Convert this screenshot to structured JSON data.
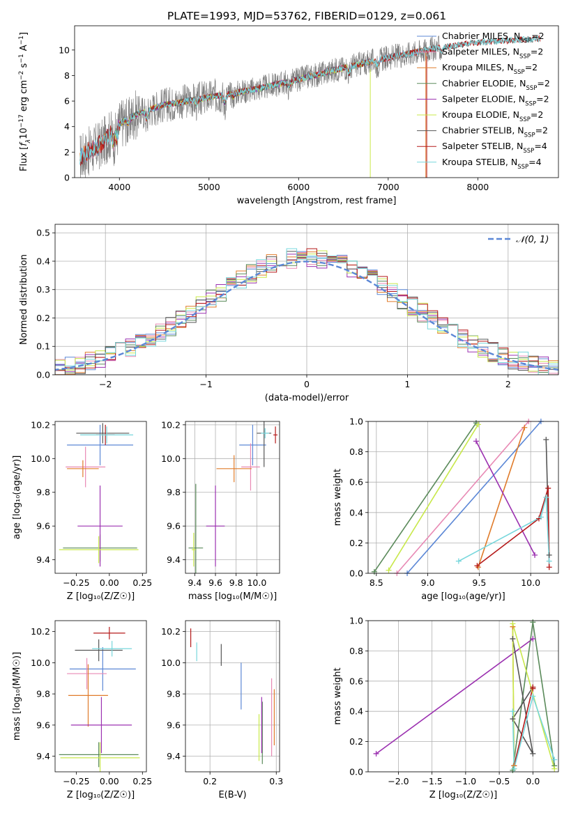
{
  "title": "PLATE=1993, MJD=53762, FIBERID=0129, z=0.061",
  "colors": {
    "chabrier_miles": "#5b87d6",
    "salpeter_miles": "#e889b4",
    "kroupa_miles": "#e07b2a",
    "chabrier_elodie": "#5a8a5a",
    "salpeter_elodie": "#9b30b0",
    "kroupa_elodie": "#c8e84a",
    "chabrier_stelib": "#555555",
    "salpeter_stelib": "#b51a1a",
    "kroupa_stelib": "#77d7dc",
    "data": "#808080",
    "gaussian": "#5b87d6"
  },
  "chart_data": [
    {
      "id": "spectrum",
      "type": "line",
      "title": "PLATE=1993, MJD=53762, FIBERID=0129, z=0.061",
      "xlabel": "wavelength [Angstrom, rest frame]",
      "ylabel_parts": [
        "Flux [",
        "f",
        "λ",
        "10",
        "−17",
        " erg cm",
        "−2",
        " s",
        "−1",
        " A",
        "−1",
        "]"
      ],
      "xlim": [
        3500,
        8900
      ],
      "ylim": [
        0,
        11.9
      ],
      "xticks": [
        "4000",
        "5000",
        "6000",
        "7000",
        "8000"
      ],
      "xtick_values": [
        4000,
        5000,
        6000,
        7000,
        8000
      ],
      "yticks": [
        "0",
        "2",
        "4",
        "6",
        "8",
        "10"
      ],
      "ytick_values": [
        0,
        2,
        4,
        6,
        8,
        10
      ],
      "legend_position": "upper right",
      "legend": [
        {
          "text": "Chabrier MILES, N",
          "sub": "SSP",
          "tail": "=2",
          "key": "chabrier_miles"
        },
        {
          "text": "Salpeter MILES, N",
          "sub": "SSP",
          "tail": "=2",
          "key": "salpeter_miles"
        },
        {
          "text": "Kroupa MILES, N",
          "sub": "SSP",
          "tail": "=2",
          "key": "kroupa_miles"
        },
        {
          "text": "Chabrier ELODIE, N",
          "sub": "SSP",
          "tail": "=2",
          "key": "chabrier_elodie"
        },
        {
          "text": "Salpeter ELODIE, N",
          "sub": "SSP",
          "tail": "=2",
          "key": "salpeter_elodie"
        },
        {
          "text": "Kroupa ELODIE, N",
          "sub": "SSP",
          "tail": "=2",
          "key": "kroupa_elodie"
        },
        {
          "text": "Chabrier STELIB, N",
          "sub": "SSP",
          "tail": "=2",
          "key": "chabrier_stelib"
        },
        {
          "text": "Salpeter STELIB, N",
          "sub": "SSP",
          "tail": "=4",
          "key": "salpeter_stelib"
        },
        {
          "text": "Kroupa STELIB, N",
          "sub": "SSP",
          "tail": "=4",
          "key": "kroupa_stelib"
        }
      ],
      "data_range": [
        3560,
        7600
      ],
      "model_ranges": {
        "miles": [
          3560,
          7420
        ],
        "elodie": [
          3900,
          6800
        ],
        "stelib": [
          3560,
          8700
        ]
      },
      "continuum_knots": [
        [
          3560,
          1.6
        ],
        [
          3800,
          2.6
        ],
        [
          4000,
          4.2
        ],
        [
          4200,
          5.0
        ],
        [
          4500,
          5.7
        ],
        [
          5000,
          6.3
        ],
        [
          5500,
          6.9
        ],
        [
          6000,
          7.7
        ],
        [
          6500,
          8.6
        ],
        [
          7000,
          9.4
        ],
        [
          7500,
          10.1
        ],
        [
          8000,
          10.6
        ],
        [
          8700,
          10.9
        ]
      ]
    },
    {
      "id": "residuals",
      "type": "histogram",
      "xlabel": "(data-model)/error",
      "ylabel": "Normed distribution",
      "xlim": [
        -2.5,
        2.5
      ],
      "ylim": [
        0,
        0.53
      ],
      "xticks": [
        "−2",
        "−1",
        "0",
        "1",
        "2"
      ],
      "xtick_values": [
        -2,
        -1,
        0,
        1,
        2
      ],
      "yticks": [
        "0.0",
        "0.1",
        "0.2",
        "0.3",
        "0.4",
        "0.5"
      ],
      "ytick_values": [
        0,
        0.1,
        0.2,
        0.3,
        0.4,
        0.5
      ],
      "legend_label": "𝒩(0, 1)",
      "legend_position": "upper right",
      "bin_width": 0.1,
      "gaussian": {
        "mu": 0,
        "sigma": 1
      }
    },
    {
      "id": "age_vs_z",
      "type": "errorbar",
      "xlabel": "Z [log₁₀(Z/Z☉)]",
      "ylabel": "age  [log₁₀(age/yr)]",
      "xlim": [
        -0.41,
        0.28
      ],
      "ylim": [
        9.32,
        10.22
      ],
      "xticks": [
        "−0.25",
        "0.00",
        "0.25"
      ],
      "xtick_values": [
        -0.25,
        0,
        0.25
      ],
      "yticks": [
        "9.4",
        "9.6",
        "9.8",
        "10.0",
        "10.2"
      ],
      "ytick_values": [
        9.4,
        9.6,
        9.8,
        10.0,
        10.2
      ],
      "points": [
        {
          "key": "chabrier_miles",
          "x": -0.07,
          "y": 10.08,
          "xerr": 0.25,
          "yerr": 0.12
        },
        {
          "key": "salpeter_miles",
          "x": -0.18,
          "y": 9.95,
          "xerr": 0.15,
          "yerr": 0.12
        },
        {
          "key": "kroupa_miles",
          "x": -0.2,
          "y": 9.94,
          "xerr": 0.12,
          "yerr": 0.05
        },
        {
          "key": "chabrier_elodie",
          "x": -0.07,
          "y": 9.47,
          "xerr": 0.28,
          "yerr": 0.08
        },
        {
          "key": "salpeter_elodie",
          "x": -0.07,
          "y": 9.6,
          "xerr": 0.17,
          "yerr": 0.24
        },
        {
          "key": "kroupa_elodie",
          "x": -0.08,
          "y": 9.46,
          "xerr": 0.3,
          "yerr": 0.08
        },
        {
          "key": "chabrier_stelib",
          "x": -0.05,
          "y": 10.15,
          "xerr": 0.2,
          "yerr": 0.06
        },
        {
          "key": "salpeter_stelib",
          "x": -0.03,
          "y": 10.14,
          "xerr": 0.07,
          "yerr": 0.06
        },
        {
          "key": "kroupa_stelib",
          "x": -0.02,
          "y": 10.14,
          "xerr": 0.2,
          "yerr": 0.05
        }
      ]
    },
    {
      "id": "age_vs_mass",
      "type": "errorbar",
      "xlabel": "mass [log₁₀(M/M☉)]",
      "ylabel": "",
      "xlim": [
        9.31,
        10.22
      ],
      "ylim": [
        9.32,
        10.22
      ],
      "xticks": [
        "9.4",
        "9.6",
        "9.8",
        "10.0"
      ],
      "xtick_values": [
        9.4,
        9.6,
        9.8,
        10.0
      ],
      "yticks": [
        "9.4",
        "9.6",
        "9.8",
        "10.0",
        "10.2"
      ],
      "ytick_values": [
        9.4,
        9.6,
        9.8,
        10.0,
        10.2
      ],
      "points": [
        {
          "key": "chabrier_miles",
          "x": 9.96,
          "y": 10.08,
          "xerr": 0.13,
          "yerr": 0.12
        },
        {
          "key": "salpeter_miles",
          "x": 9.94,
          "y": 9.95,
          "xerr": 0.09,
          "yerr": 0.14
        },
        {
          "key": "kroupa_miles",
          "x": 9.78,
          "y": 9.94,
          "xerr": 0.17,
          "yerr": 0.08
        },
        {
          "key": "chabrier_elodie",
          "x": 9.41,
          "y": 9.47,
          "xerr": 0.07,
          "yerr": 0.38
        },
        {
          "key": "salpeter_elodie",
          "x": 9.6,
          "y": 9.6,
          "xerr": 0.09,
          "yerr": 0.24
        },
        {
          "key": "kroupa_elodie",
          "x": 9.39,
          "y": 9.46,
          "xerr": 0.02,
          "yerr": 0.1
        },
        {
          "key": "chabrier_stelib",
          "x": 10.07,
          "y": 10.15,
          "xerr": 0.07,
          "yerr": 0.2
        },
        {
          "key": "salpeter_stelib",
          "x": 10.18,
          "y": 10.14,
          "xerr": 0.02,
          "yerr": 0.05
        },
        {
          "key": "kroupa_stelib",
          "x": 10.08,
          "y": 10.15,
          "xerr": 0.04,
          "yerr": 0.03
        }
      ]
    },
    {
      "id": "weight_vs_age",
      "type": "line",
      "xlabel": "age  [log₁₀(age/yr)]",
      "ylabel": "mass weight",
      "xlim": [
        8.42,
        10.27
      ],
      "ylim": [
        0,
        1
      ],
      "xticks": [
        "8.5",
        "9.0",
        "9.5",
        "10.0"
      ],
      "xtick_values": [
        8.5,
        9.0,
        9.5,
        10.0
      ],
      "yticks": [
        "0.0",
        "0.2",
        "0.4",
        "0.6",
        "0.8",
        "1.0"
      ],
      "ytick_values": [
        0,
        0.2,
        0.4,
        0.6,
        0.8,
        1.0
      ],
      "series": [
        {
          "key": "chabrier_elodie",
          "x": [
            8.48,
            9.47
          ],
          "y": [
            0.01,
            0.99
          ]
        },
        {
          "key": "salpeter_miles",
          "x": [
            8.7,
            9.98
          ],
          "y": [
            0.0,
            1.0
          ]
        },
        {
          "key": "kroupa_elodie",
          "x": [
            8.62,
            9.49
          ],
          "y": [
            0.02,
            0.98
          ]
        },
        {
          "key": "chabrier_miles",
          "x": [
            8.8,
            10.1
          ],
          "y": [
            0.0,
            1.0
          ]
        },
        {
          "key": "kroupa_miles",
          "x": [
            9.49,
            9.94
          ],
          "y": [
            0.04,
            0.96
          ]
        },
        {
          "key": "salpeter_elodie",
          "x": [
            9.47,
            10.04
          ],
          "y": [
            0.87,
            0.12
          ]
        },
        {
          "key": "chabrier_stelib",
          "x": [
            10.15,
            10.18
          ],
          "y": [
            0.88,
            0.12
          ]
        },
        {
          "key": "salpeter_stelib",
          "x": [
            9.48,
            10.08,
            10.17,
            10.18
          ],
          "y": [
            0.05,
            0.36,
            0.56,
            0.04
          ]
        },
        {
          "key": "kroupa_stelib",
          "x": [
            9.3,
            10.1,
            10.15,
            10.18
          ],
          "y": [
            0.08,
            0.37,
            0.5,
            0.08
          ]
        }
      ]
    },
    {
      "id": "mass_vs_z",
      "type": "errorbar",
      "xlabel": "Z [log₁₀(Z/Z☉)]",
      "ylabel": "mass [log₁₀(M/M☉)]",
      "xlim": [
        -0.41,
        0.28
      ],
      "ylim": [
        9.3,
        10.27
      ],
      "xticks": [
        "−0.25",
        "0.00",
        "0.25"
      ],
      "xtick_values": [
        -0.25,
        0,
        0.25
      ],
      "yticks": [
        "9.4",
        "9.6",
        "9.8",
        "10.0",
        "10.2"
      ],
      "ytick_values": [
        9.4,
        9.6,
        9.8,
        10.0,
        10.2
      ],
      "points": [
        {
          "key": "chabrier_miles",
          "x": -0.05,
          "y": 9.96,
          "xerr": 0.25,
          "yerr": 0.14
        },
        {
          "key": "salpeter_miles",
          "x": -0.17,
          "y": 9.93,
          "xerr": 0.15,
          "yerr": 0.1
        },
        {
          "key": "kroupa_miles",
          "x": -0.16,
          "y": 9.79,
          "xerr": 0.15,
          "yerr": 0.2
        },
        {
          "key": "chabrier_elodie",
          "x": -0.08,
          "y": 9.41,
          "xerr": 0.3,
          "yerr": 0.08
        },
        {
          "key": "salpeter_elodie",
          "x": -0.06,
          "y": 9.6,
          "xerr": 0.23,
          "yerr": 0.18
        },
        {
          "key": "kroupa_elodie",
          "x": -0.07,
          "y": 9.39,
          "xerr": 0.3,
          "yerr": 0.1
        },
        {
          "key": "chabrier_stelib",
          "x": -0.08,
          "y": 10.08,
          "xerr": 0.18,
          "yerr": 0.07
        },
        {
          "key": "salpeter_stelib",
          "x": 0.0,
          "y": 10.19,
          "xerr": 0.12,
          "yerr": 0.04
        },
        {
          "key": "kroupa_stelib",
          "x": 0.02,
          "y": 10.09,
          "xerr": 0.15,
          "yerr": 0.05
        }
      ]
    },
    {
      "id": "mass_vs_ebv",
      "type": "errorbar",
      "xlabel": "E(B-V)",
      "ylabel": "",
      "xlim": [
        0.163,
        0.305
      ],
      "ylim": [
        9.3,
        10.27
      ],
      "xticks": [
        "0.2",
        "0.3"
      ],
      "xtick_values": [
        0.2,
        0.3
      ],
      "yticks": [
        "9.4",
        "9.6",
        "9.8",
        "10.0",
        "10.2"
      ],
      "ytick_values": [
        9.4,
        9.6,
        9.8,
        10.0,
        10.2
      ],
      "points": [
        {
          "key": "chabrier_miles",
          "x": 0.247,
          "y": 9.85,
          "xerr": 0,
          "yerr": 0.15
        },
        {
          "key": "salpeter_miles",
          "x": 0.293,
          "y": 9.65,
          "xerr": 0,
          "yerr": 0.25
        },
        {
          "key": "kroupa_miles",
          "x": 0.297,
          "y": 9.65,
          "xerr": 0,
          "yerr": 0.18
        },
        {
          "key": "chabrier_elodie",
          "x": 0.279,
          "y": 9.55,
          "xerr": 0,
          "yerr": 0.2
        },
        {
          "key": "salpeter_elodie",
          "x": 0.278,
          "y": 9.6,
          "xerr": 0,
          "yerr": 0.18
        },
        {
          "key": "kroupa_elodie",
          "x": 0.274,
          "y": 9.52,
          "xerr": 0,
          "yerr": 0.15
        },
        {
          "key": "chabrier_stelib",
          "x": 0.217,
          "y": 10.05,
          "xerr": 0,
          "yerr": 0.07
        },
        {
          "key": "salpeter_stelib",
          "x": 0.171,
          "y": 10.16,
          "xerr": 0,
          "yerr": 0.06
        },
        {
          "key": "kroupa_stelib",
          "x": 0.18,
          "y": 10.07,
          "xerr": 0,
          "yerr": 0.06
        }
      ]
    },
    {
      "id": "weight_vs_z",
      "type": "line",
      "xlabel": "Z [log₁₀(Z/Z☉)]",
      "ylabel": "mass weight",
      "xlim": [
        -2.45,
        0.38
      ],
      "ylim": [
        0,
        1
      ],
      "xticks": [
        "−2.0",
        "−1.5",
        "−1.0",
        "−0.5",
        "0.0"
      ],
      "xtick_values": [
        -2.0,
        -1.5,
        -1.0,
        -0.5,
        0.0
      ],
      "yticks": [
        "0.0",
        "0.2",
        "0.4",
        "0.6",
        "0.8",
        "1.0"
      ],
      "ytick_values": [
        0,
        0.2,
        0.4,
        0.6,
        0.8,
        1.0
      ],
      "series": [
        {
          "key": "salpeter_elodie",
          "x": [
            -2.33,
            0.0
          ],
          "y": [
            0.12,
            0.88
          ]
        },
        {
          "key": "chabrier_elodie",
          "x": [
            -0.3,
            0.0,
            0.32
          ],
          "y": [
            0.01,
            0.99,
            0.04
          ]
        },
        {
          "key": "chabrier_stelib",
          "x": [
            -0.3,
            0.0,
            -0.3,
            0.0
          ],
          "y": [
            0.88,
            0.12,
            0.35,
            0.56
          ]
        },
        {
          "key": "salpeter_stelib",
          "x": [
            -0.28,
            0.0,
            0.0
          ],
          "y": [
            0.04,
            0.56,
            0.55
          ]
        },
        {
          "key": "kroupa_miles",
          "x": [
            -0.3,
            -0.28
          ],
          "y": [
            0.96,
            0.04
          ]
        },
        {
          "key": "kroupa_elodie",
          "x": [
            -0.28,
            -0.3,
            0.32
          ],
          "y": [
            0.02,
            0.98,
            0.02
          ]
        },
        {
          "key": "kroupa_stelib",
          "x": [
            -0.3,
            -0.28,
            0.0,
            0.32
          ],
          "y": [
            0.4,
            0.02,
            0.5,
            0.08
          ]
        }
      ]
    }
  ]
}
